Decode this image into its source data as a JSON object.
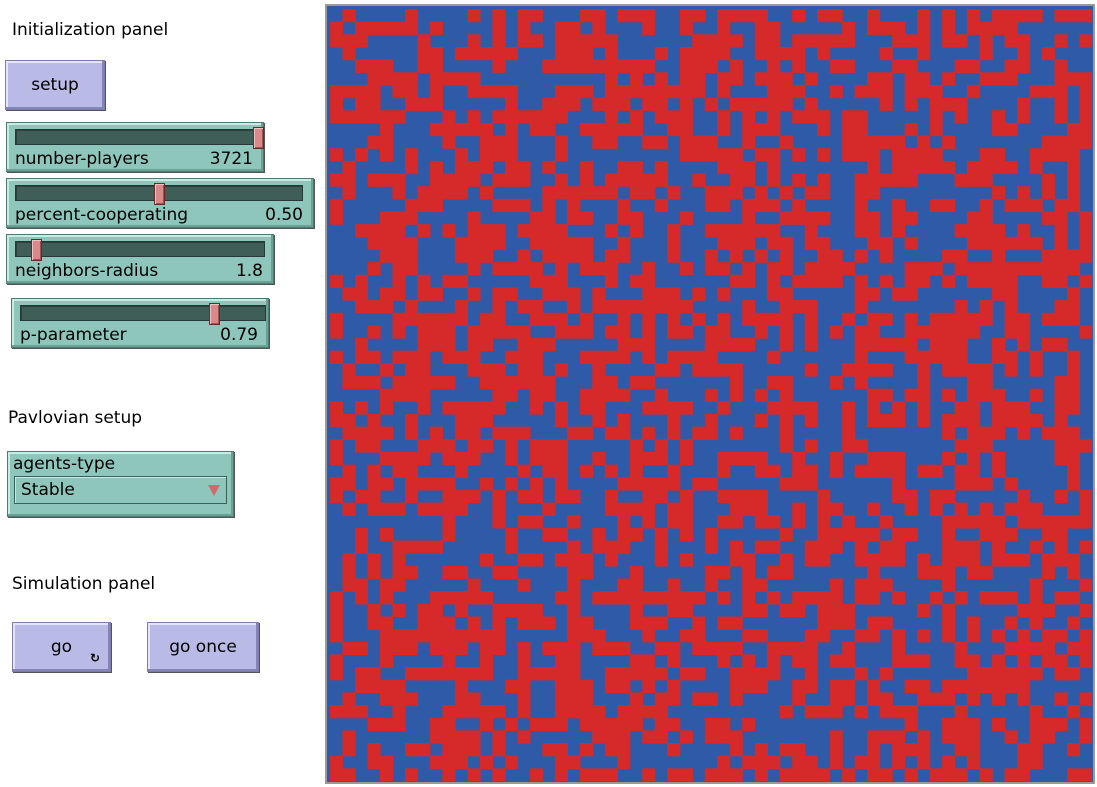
{
  "panels": {
    "initialization_title": "Initialization panel",
    "pavlovian_title": "Pavlovian setup",
    "simulation_title": "Simulation panel"
  },
  "buttons": {
    "setup": "setup",
    "go": "go",
    "go_once": "go once",
    "go_forever_icon": "repeat-icon"
  },
  "sliders": [
    {
      "label": "number-players",
      "value": "3721",
      "fraction": 0.99
    },
    {
      "label": "percent-cooperating",
      "value": "0.50",
      "fraction": 0.5
    },
    {
      "label": "neighbors-radius",
      "value": "1.8",
      "fraction": 0.08
    },
    {
      "label": "p-parameter",
      "value": "0.79",
      "fraction": 0.79
    }
  ],
  "chooser": {
    "label": "agents-type",
    "selected": "Stable"
  },
  "world": {
    "grid_cols": 61,
    "grid_rows": 61,
    "colors": {
      "cooperate": "#2e5aa8",
      "defect": "#d62a2a"
    },
    "red_fraction": 0.5
  }
}
